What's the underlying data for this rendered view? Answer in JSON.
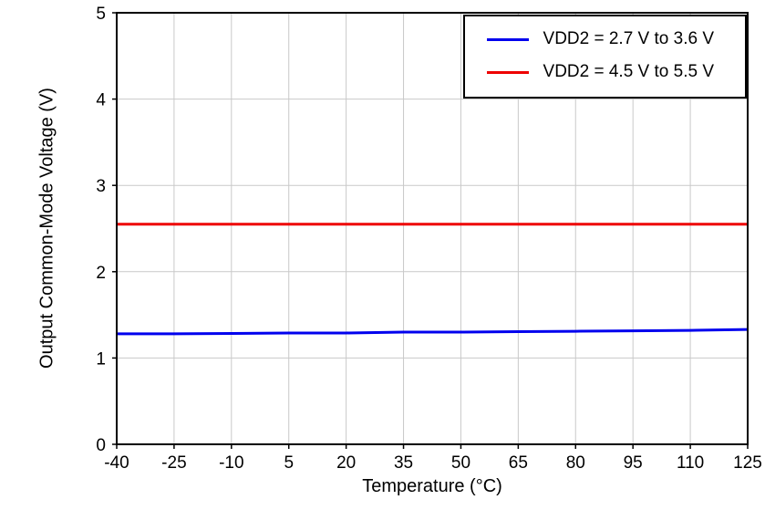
{
  "chart_data": {
    "type": "line",
    "title": "",
    "xlabel": "Temperature (°C)",
    "ylabel": "Output Common-Mode Voltage (V)",
    "xlim": [
      -40,
      125
    ],
    "ylim": [
      0,
      5
    ],
    "xticks": [
      -40,
      -25,
      -10,
      5,
      20,
      35,
      50,
      65,
      80,
      95,
      110,
      125
    ],
    "yticks": [
      0,
      1,
      2,
      3,
      4,
      5
    ],
    "grid": true,
    "grid_color": "#c9c9c9",
    "axis_color": "#000000",
    "legend_position": "top-right",
    "x": [
      -40,
      -25,
      -10,
      5,
      20,
      35,
      50,
      65,
      80,
      95,
      110,
      125
    ],
    "series": [
      {
        "name": "VDD2 = 2.7 V to 3.6 V",
        "color": "#0000ee",
        "values": [
          1.28,
          1.28,
          1.285,
          1.29,
          1.29,
          1.3,
          1.3,
          1.305,
          1.31,
          1.315,
          1.32,
          1.33
        ]
      },
      {
        "name": "VDD2 = 4.5 V to 5.5 V",
        "color": "#ee0000",
        "values": [
          2.55,
          2.55,
          2.55,
          2.55,
          2.55,
          2.55,
          2.55,
          2.55,
          2.55,
          2.55,
          2.55,
          2.55
        ]
      }
    ]
  }
}
